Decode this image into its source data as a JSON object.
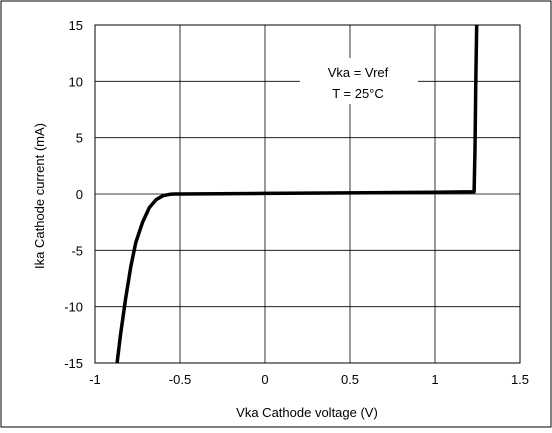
{
  "chart_data": {
    "type": "line",
    "title": "",
    "xlabel": "Vka Cathode voltage (V)",
    "ylabel": "Ika Cathode current (mA)",
    "xlim": [
      -1,
      1.5
    ],
    "ylim": [
      -15,
      15
    ],
    "x_ticks": [
      -1,
      -0.5,
      0,
      0.5,
      1,
      1.5
    ],
    "x_tick_labels": [
      "-1",
      "-0.5",
      "0",
      "0.5",
      "1",
      "1.5"
    ],
    "y_ticks": [
      -15,
      -10,
      -5,
      0,
      5,
      10,
      15
    ],
    "y_tick_labels": [
      "-15",
      "-10",
      "-5",
      "0",
      "5",
      "10",
      "15"
    ],
    "grid": true,
    "annotations": [
      "Vka = Vref",
      "T = 25°C"
    ],
    "series": [
      {
        "x": [
          -0.87,
          -0.85,
          -0.82,
          -0.79,
          -0.76,
          -0.72,
          -0.68,
          -0.64,
          -0.6,
          -0.56,
          -0.53,
          -0.5,
          0,
          0.5,
          1.0,
          1.23,
          1.235,
          1.24,
          1.245
        ],
        "y": [
          -15,
          -12.5,
          -9.3,
          -6.5,
          -4.3,
          -2.5,
          -1.2,
          -0.5,
          -0.15,
          -0.03,
          0,
          0,
          0.05,
          0.1,
          0.15,
          0.2,
          4,
          10,
          15
        ],
        "color": "#000000"
      }
    ]
  }
}
